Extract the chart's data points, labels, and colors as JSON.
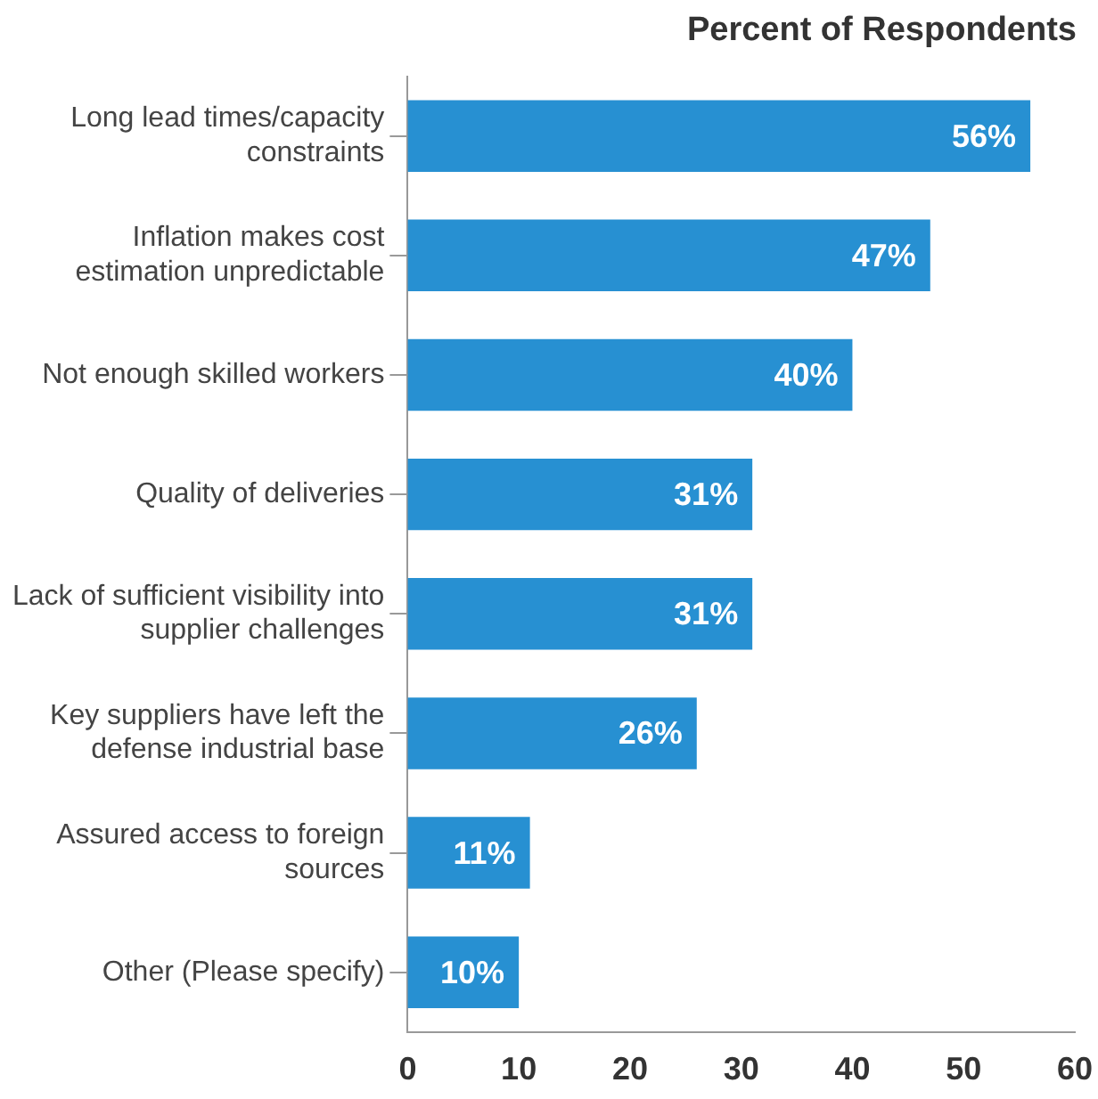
{
  "chart_data": {
    "type": "bar",
    "orientation": "horizontal",
    "title": "Percent of Respondents",
    "categories": [
      "Long lead times/capacity constraints",
      "Inflation makes cost estimation unpredictable",
      "Not enough skilled workers",
      "Quality of deliveries",
      "Lack of sufficient visibility into supplier challenges",
      "Key suppliers have left the defense industrial base",
      "Assured access to foreign sources",
      "Other (Please specify)"
    ],
    "values": [
      56,
      47,
      40,
      31,
      31,
      26,
      11,
      10
    ],
    "value_labels": [
      "56%",
      "47%",
      "40%",
      "31%",
      "31%",
      "26%",
      "11%",
      "10%"
    ],
    "color": "#2790d2",
    "xlim": [
      0,
      60
    ],
    "xticks": [
      0,
      10,
      20,
      30,
      40,
      50,
      60
    ],
    "grid": false,
    "legend": false
  }
}
